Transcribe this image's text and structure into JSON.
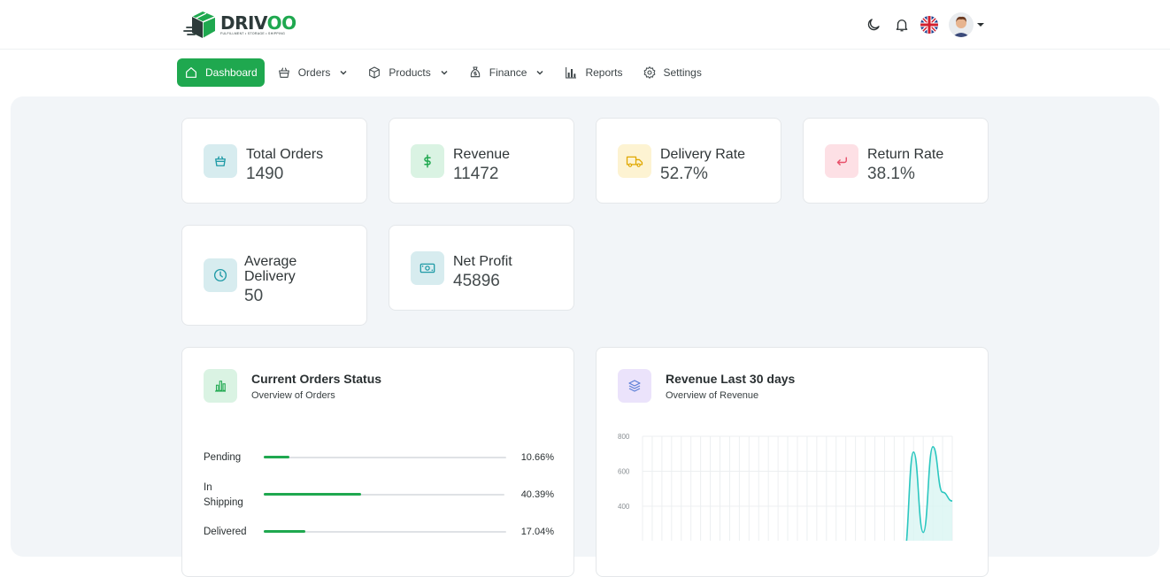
{
  "brand": {
    "name_part1": "DRIV",
    "name_part2": "OO",
    "tagline": "FULFILLMENT • STORAGE • SHIPPING"
  },
  "header_icons": [
    "moon-icon",
    "bell-icon",
    "uk-flag-icon",
    "user-avatar",
    "caret-down-icon"
  ],
  "nav": [
    {
      "label": "Dashboard",
      "icon": "home-icon",
      "active": true
    },
    {
      "label": "Orders",
      "icon": "basket-icon",
      "has_dropdown": true
    },
    {
      "label": "Products",
      "icon": "box-icon",
      "has_dropdown": true
    },
    {
      "label": "Finance",
      "icon": "money-bag-icon",
      "has_dropdown": true
    },
    {
      "label": "Reports",
      "icon": "bar-chart-icon"
    },
    {
      "label": "Settings",
      "icon": "gear-icon"
    }
  ],
  "stats": [
    {
      "label": "Total Orders",
      "value": "1490",
      "icon": "basket-icon",
      "color": "#1f9aa6"
    },
    {
      "label": "Revenue",
      "value": "11472",
      "icon": "dollar-icon",
      "color": "#1fa84f"
    },
    {
      "label": "Delivery Rate",
      "value": "52.7%",
      "icon": "truck-icon",
      "color": "#e0a800"
    },
    {
      "label": "Return Rate",
      "value": "38.1%",
      "icon": "return-arrow-icon",
      "color": "#e8506a"
    },
    {
      "label": "Average Delivery",
      "value": "50",
      "icon": "clock-icon",
      "color": "#1f9aa6"
    },
    {
      "label": "Net Profit",
      "value": "45896",
      "icon": "cash-icon",
      "color": "#1f9aa6"
    }
  ],
  "orders_status": {
    "title": "Current Orders Status",
    "subtitle": "Overview of Orders",
    "rows": [
      {
        "label": "Pending",
        "percent": 10.66,
        "percent_label": "10.66%"
      },
      {
        "label": "In Shipping",
        "percent": 40.39,
        "percent_label": "40.39%"
      },
      {
        "label": "Delivered",
        "percent": 17.04,
        "percent_label": "17.04%"
      }
    ]
  },
  "revenue_chart": {
    "title": "Revenue Last 30 days",
    "subtitle": "Overview of Revenue"
  },
  "chart_data": {
    "type": "area",
    "y_ticks": [
      "800",
      "600",
      "400"
    ],
    "ylim": [
      0,
      800
    ],
    "grid": true,
    "series": [
      {
        "values": [
          0,
          0,
          0,
          0,
          0,
          0,
          0,
          0,
          0,
          0,
          0,
          0,
          0,
          0,
          0,
          0,
          0,
          0,
          0,
          0,
          0,
          0,
          0,
          0,
          0,
          0,
          0,
          120,
          710,
          250,
          740,
          480,
          430
        ]
      }
    ],
    "colors": {
      "line": "#2cc7c0",
      "fill": "#d9f5f3"
    }
  },
  "colors": {
    "accent": "#1fa84f",
    "panel_bg": "#f2f5f8"
  }
}
